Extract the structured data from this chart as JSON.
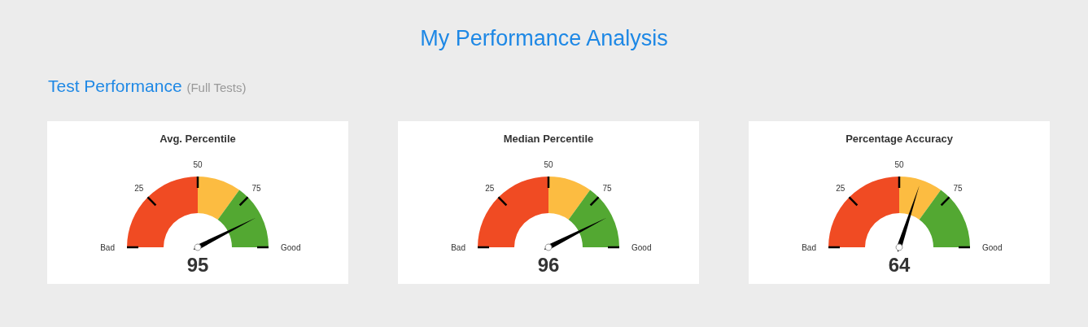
{
  "chart_data": [
    {
      "type": "other",
      "title": "My Performance Analysis",
      "subtitle": "Test Performance",
      "annotations": [
        "(Full Tests)"
      ]
    },
    {
      "type": "donut",
      "title": "Avg. Percentile",
      "categories": [
        "Bad",
        null,
        "Good"
      ],
      "values": [
        50,
        20,
        30
      ],
      "colors": [
        "#f04b23",
        "#fcbc41",
        "#53a832"
      ],
      "needle": "Good",
      "annotations": [
        "25",
        "50",
        "75",
        "95"
      ]
    },
    {
      "type": "donut",
      "title": "Median Percentile",
      "categories": [
        "Bad",
        null,
        "Good"
      ],
      "values": [
        50,
        20,
        30
      ],
      "colors": [
        "#f04b23",
        "#fcbc41",
        "#53a832"
      ],
      "needle": "Good",
      "annotations": [
        "25",
        "50",
        "75",
        "96"
      ]
    },
    {
      "type": "donut",
      "title": "Percentage Accuracy",
      "categories": [
        "Bad",
        null,
        "Good"
      ],
      "values": [
        50,
        20,
        30
      ],
      "colors": [
        "#f04b23",
        "#fcbc41",
        "#53a832"
      ],
      "needle": null,
      "annotations": [
        "25",
        "50",
        "75",
        "64"
      ]
    }
  ]
}
